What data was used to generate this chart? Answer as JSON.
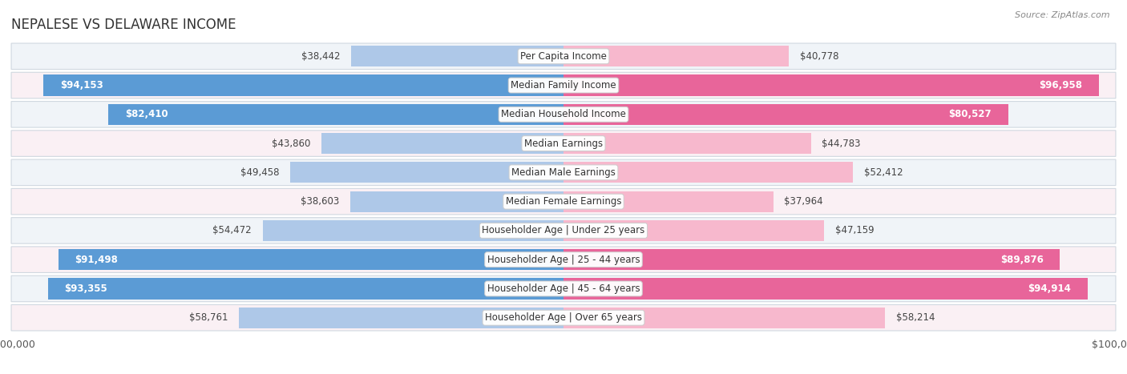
{
  "title": "NEPALESE VS DELAWARE INCOME",
  "source": "Source: ZipAtlas.com",
  "categories": [
    "Per Capita Income",
    "Median Family Income",
    "Median Household Income",
    "Median Earnings",
    "Median Male Earnings",
    "Median Female Earnings",
    "Householder Age | Under 25 years",
    "Householder Age | 25 - 44 years",
    "Householder Age | 45 - 64 years",
    "Householder Age | Over 65 years"
  ],
  "nepalese_values": [
    38442,
    94153,
    82410,
    43860,
    49458,
    38603,
    54472,
    91498,
    93355,
    58761
  ],
  "delaware_values": [
    40778,
    96958,
    80527,
    44783,
    52412,
    37964,
    47159,
    89876,
    94914,
    58214
  ],
  "nepalese_labels": [
    "$38,442",
    "$94,153",
    "$82,410",
    "$43,860",
    "$49,458",
    "$38,603",
    "$54,472",
    "$91,498",
    "$93,355",
    "$58,761"
  ],
  "delaware_labels": [
    "$40,778",
    "$96,958",
    "$80,527",
    "$44,783",
    "$52,412",
    "$37,964",
    "$47,159",
    "$89,876",
    "$94,914",
    "$58,214"
  ],
  "nepalese_color_light": "#aec8e8",
  "nepalese_color_dark": "#5b9bd5",
  "delaware_color_light": "#f7b8cd",
  "delaware_color_dark": "#e8659a",
  "max_value": 100000,
  "background_color": "#ffffff",
  "row_bg_even": "#f0f4f8",
  "row_bg_odd": "#faf0f4",
  "row_border": "#d0d8e0",
  "title_color": "#333333",
  "label_outside_color": "#444444",
  "label_inside_color": "#ffffff",
  "value_fontsize": 8.5,
  "category_fontsize": 8.5,
  "bar_height": 0.72
}
